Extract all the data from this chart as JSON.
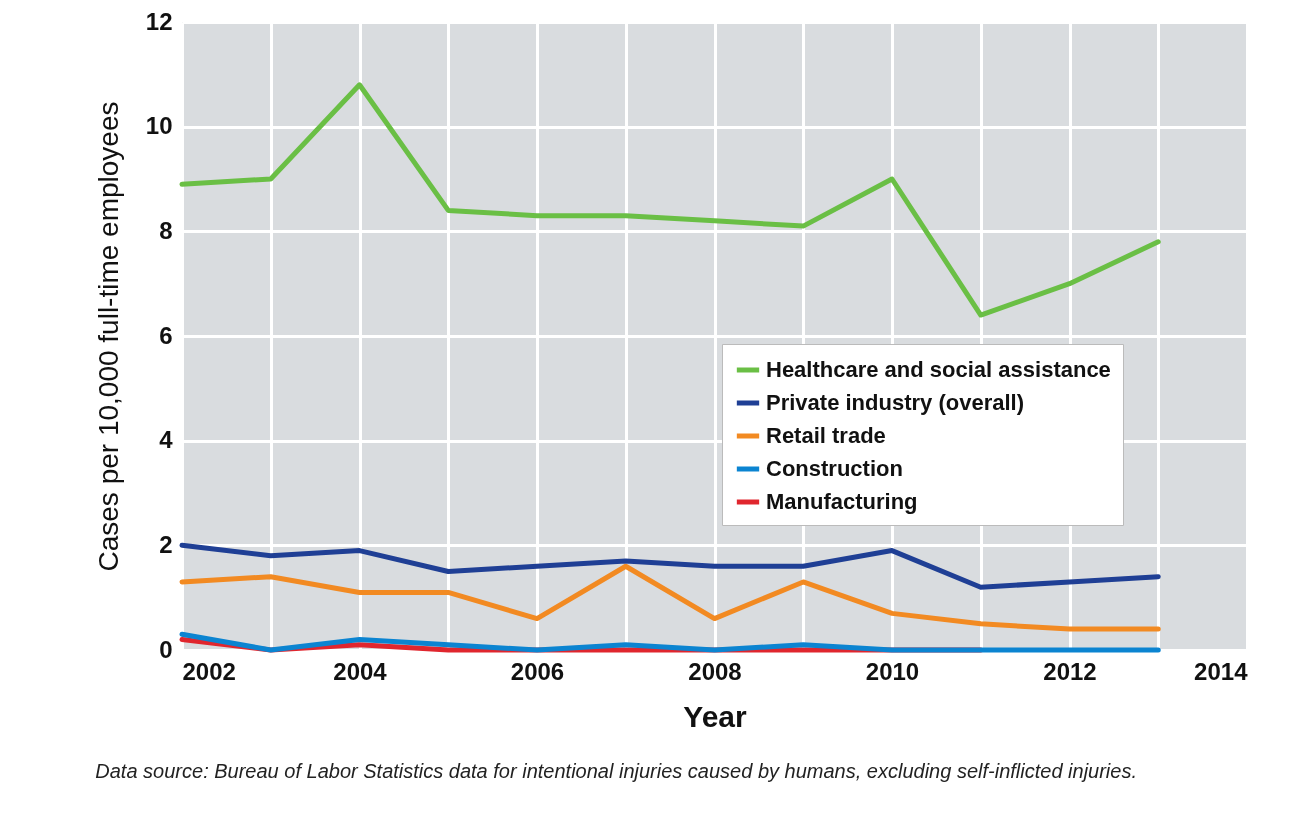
{
  "chart_data": {
    "type": "line",
    "xlabel": "Year",
    "ylabel": "Cases per 10,000 full-time employees",
    "annotations": [
      "Data source: Bureau of Labor Statistics data for intentional injuries caused by humans, excluding self-inflicted injuries."
    ],
    "x": [
      2002,
      2003,
      2004,
      2005,
      2006,
      2007,
      2008,
      2009,
      2010,
      2011,
      2012,
      2013
    ],
    "series": [
      {
        "name": "Healthcare and social assistance",
        "color": "#6abf45",
        "values": [
          8.9,
          9.0,
          10.8,
          8.4,
          8.3,
          8.3,
          8.2,
          8.1,
          9.0,
          6.4,
          7.0,
          7.8
        ]
      },
      {
        "name": "Private industry (overall)",
        "color": "#1f3f95",
        "values": [
          2.0,
          1.8,
          1.9,
          1.5,
          1.6,
          1.7,
          1.6,
          1.6,
          1.9,
          1.2,
          1.3,
          1.4
        ]
      },
      {
        "name": "Retail trade",
        "color": "#f28a22",
        "values": [
          1.3,
          1.4,
          1.1,
          1.1,
          0.6,
          1.6,
          0.6,
          1.3,
          0.7,
          0.5,
          0.4,
          0.4
        ]
      },
      {
        "name": "Construction",
        "color": "#0b84d1",
        "values": [
          0.3,
          0.0,
          0.2,
          0.1,
          0.0,
          0.1,
          0.0,
          0.1,
          0.0,
          0.0,
          0.0,
          0.0
        ]
      },
      {
        "name": "Manufacturing",
        "color": "#e0262e",
        "values": [
          0.2,
          0.0,
          0.1,
          0.0,
          0.0,
          0.0,
          0.0,
          0.0,
          0.0,
          0.0,
          null,
          null
        ]
      }
    ],
    "xlim": [
      2002,
      2014
    ],
    "xticks": [
      2002,
      {
        "value": 2003,
        "label": null
      },
      2004,
      {
        "value": 2005,
        "label": null
      },
      2006,
      {
        "value": 2007,
        "label": null
      },
      2008,
      {
        "value": 2009,
        "label": null
      },
      2010,
      {
        "value": 2011,
        "label": null
      },
      2012,
      {
        "value": 2013,
        "label": null
      },
      2014
    ],
    "ylim": [
      0,
      12
    ],
    "yticks": [
      0,
      2,
      4,
      6,
      8,
      10,
      12
    ],
    "grid": true,
    "legend": "right",
    "marker": "none",
    "line_style": "solid"
  }
}
